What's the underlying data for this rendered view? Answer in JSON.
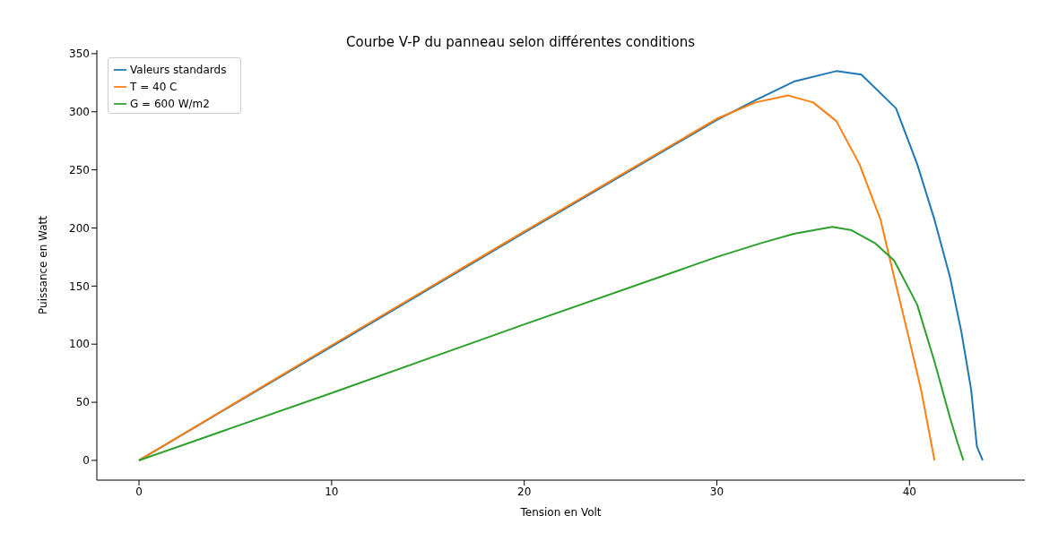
{
  "chart_data": {
    "type": "line",
    "title": "Courbe V-P du panneau selon différentes conditions",
    "xlabel": "Tension en Volt",
    "ylabel": "Puissance en Watt",
    "xlim": [
      -2.19,
      45.99
    ],
    "xticks": [
      0,
      10,
      20,
      30,
      40
    ],
    "ylim": [
      -17,
      353
    ],
    "yticks": [
      0,
      50,
      100,
      150,
      200,
      250,
      300,
      350
    ],
    "grid": false,
    "legend": "top left",
    "marker": "none",
    "line_style": "solid",
    "series": [
      {
        "name": "Valeurs standards",
        "color": "#1f77b4",
        "x": [
          0,
          10,
          20,
          30,
          32,
          34,
          36.2,
          37.5,
          39.3,
          40.4,
          41.3,
          42.1,
          42.7,
          43.2,
          43.5,
          43.8
        ],
        "values": [
          0,
          98,
          196,
          293,
          310,
          326,
          335,
          332,
          303,
          255,
          207,
          158,
          110,
          61,
          12,
          0
        ]
      },
      {
        "name": "T = 40 C",
        "color": "#ff7f0e",
        "x": [
          0,
          10,
          20,
          30,
          32,
          33.7,
          35,
          36.2,
          37.4,
          38.5,
          39.2,
          39.9,
          40.6,
          41.3
        ],
        "values": [
          0,
          99,
          197,
          294,
          308,
          314,
          308,
          292,
          255,
          207,
          158,
          110,
          61,
          0
        ]
      },
      {
        "name": "G = 600 W/m2",
        "color": "#2ca02c",
        "x": [
          0,
          10,
          20,
          30,
          32.3,
          34,
          36,
          37,
          38.2,
          39.2,
          40.4,
          41.3,
          42.1,
          42.5,
          42.8
        ],
        "values": [
          0,
          58,
          117,
          175,
          187,
          195,
          201,
          198,
          187,
          172,
          134,
          85,
          37,
          15,
          0
        ]
      }
    ]
  }
}
